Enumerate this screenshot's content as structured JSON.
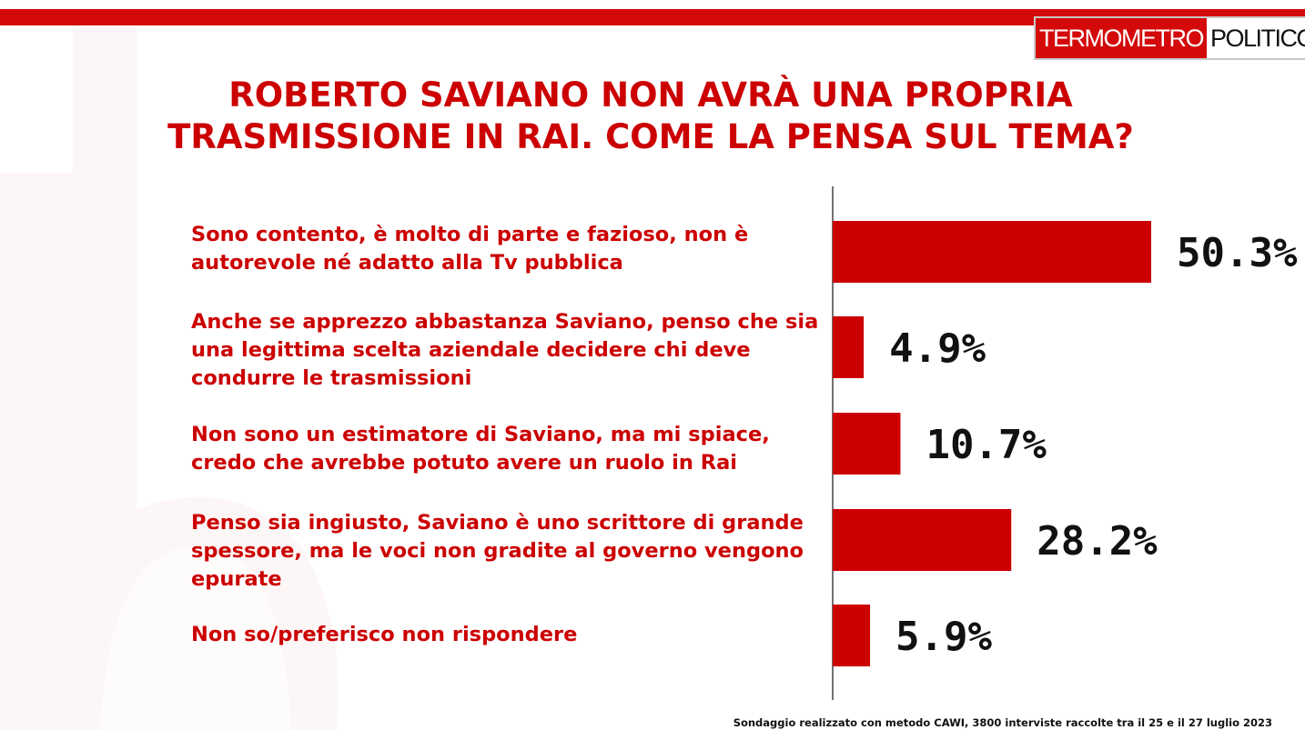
{
  "brand": {
    "part1": "TERMOMETRO",
    "part2": "POLITICO"
  },
  "colors": {
    "accent": "#d40a0a",
    "bar": "#cc0000",
    "text_red": "#cc0000",
    "value_text": "#111111"
  },
  "footnote": "Sondaggio realizzato con metodo CAWI, 3800 interviste raccolte tra il 25 e il 27 luglio 2023",
  "chart_data": {
    "type": "bar",
    "orientation": "horizontal",
    "title": "ROBERTO SAVIANO NON AVRÀ UNA PROPRIA TRASMISSIONE IN RAI. COME LA PENSA SUL TEMA?",
    "categories": [
      "Sono contento, è molto di parte e fazioso, non è autorevole né adatto alla Tv pubblica",
      "Anche se apprezzo abbastanza Saviano, penso che sia una legittima scelta aziendale decidere chi deve condurre le trasmissioni",
      "Non sono un estimatore di Saviano, ma mi spiace, credo che avrebbe potuto avere un ruolo in Rai",
      "Penso sia ingiusto, Saviano è uno scrittore di grande spessore, ma le voci non gradite al governo vengono epurate",
      "Non so/preferisco non rispondere"
    ],
    "values": [
      50.3,
      4.9,
      10.7,
      28.2,
      5.9
    ],
    "value_labels": [
      "50.3%",
      "4.9%",
      "10.7%",
      "28.2%",
      "5.9%"
    ],
    "unit": "%",
    "xlim": [
      0,
      60
    ],
    "grid": false,
    "legend": "none"
  }
}
